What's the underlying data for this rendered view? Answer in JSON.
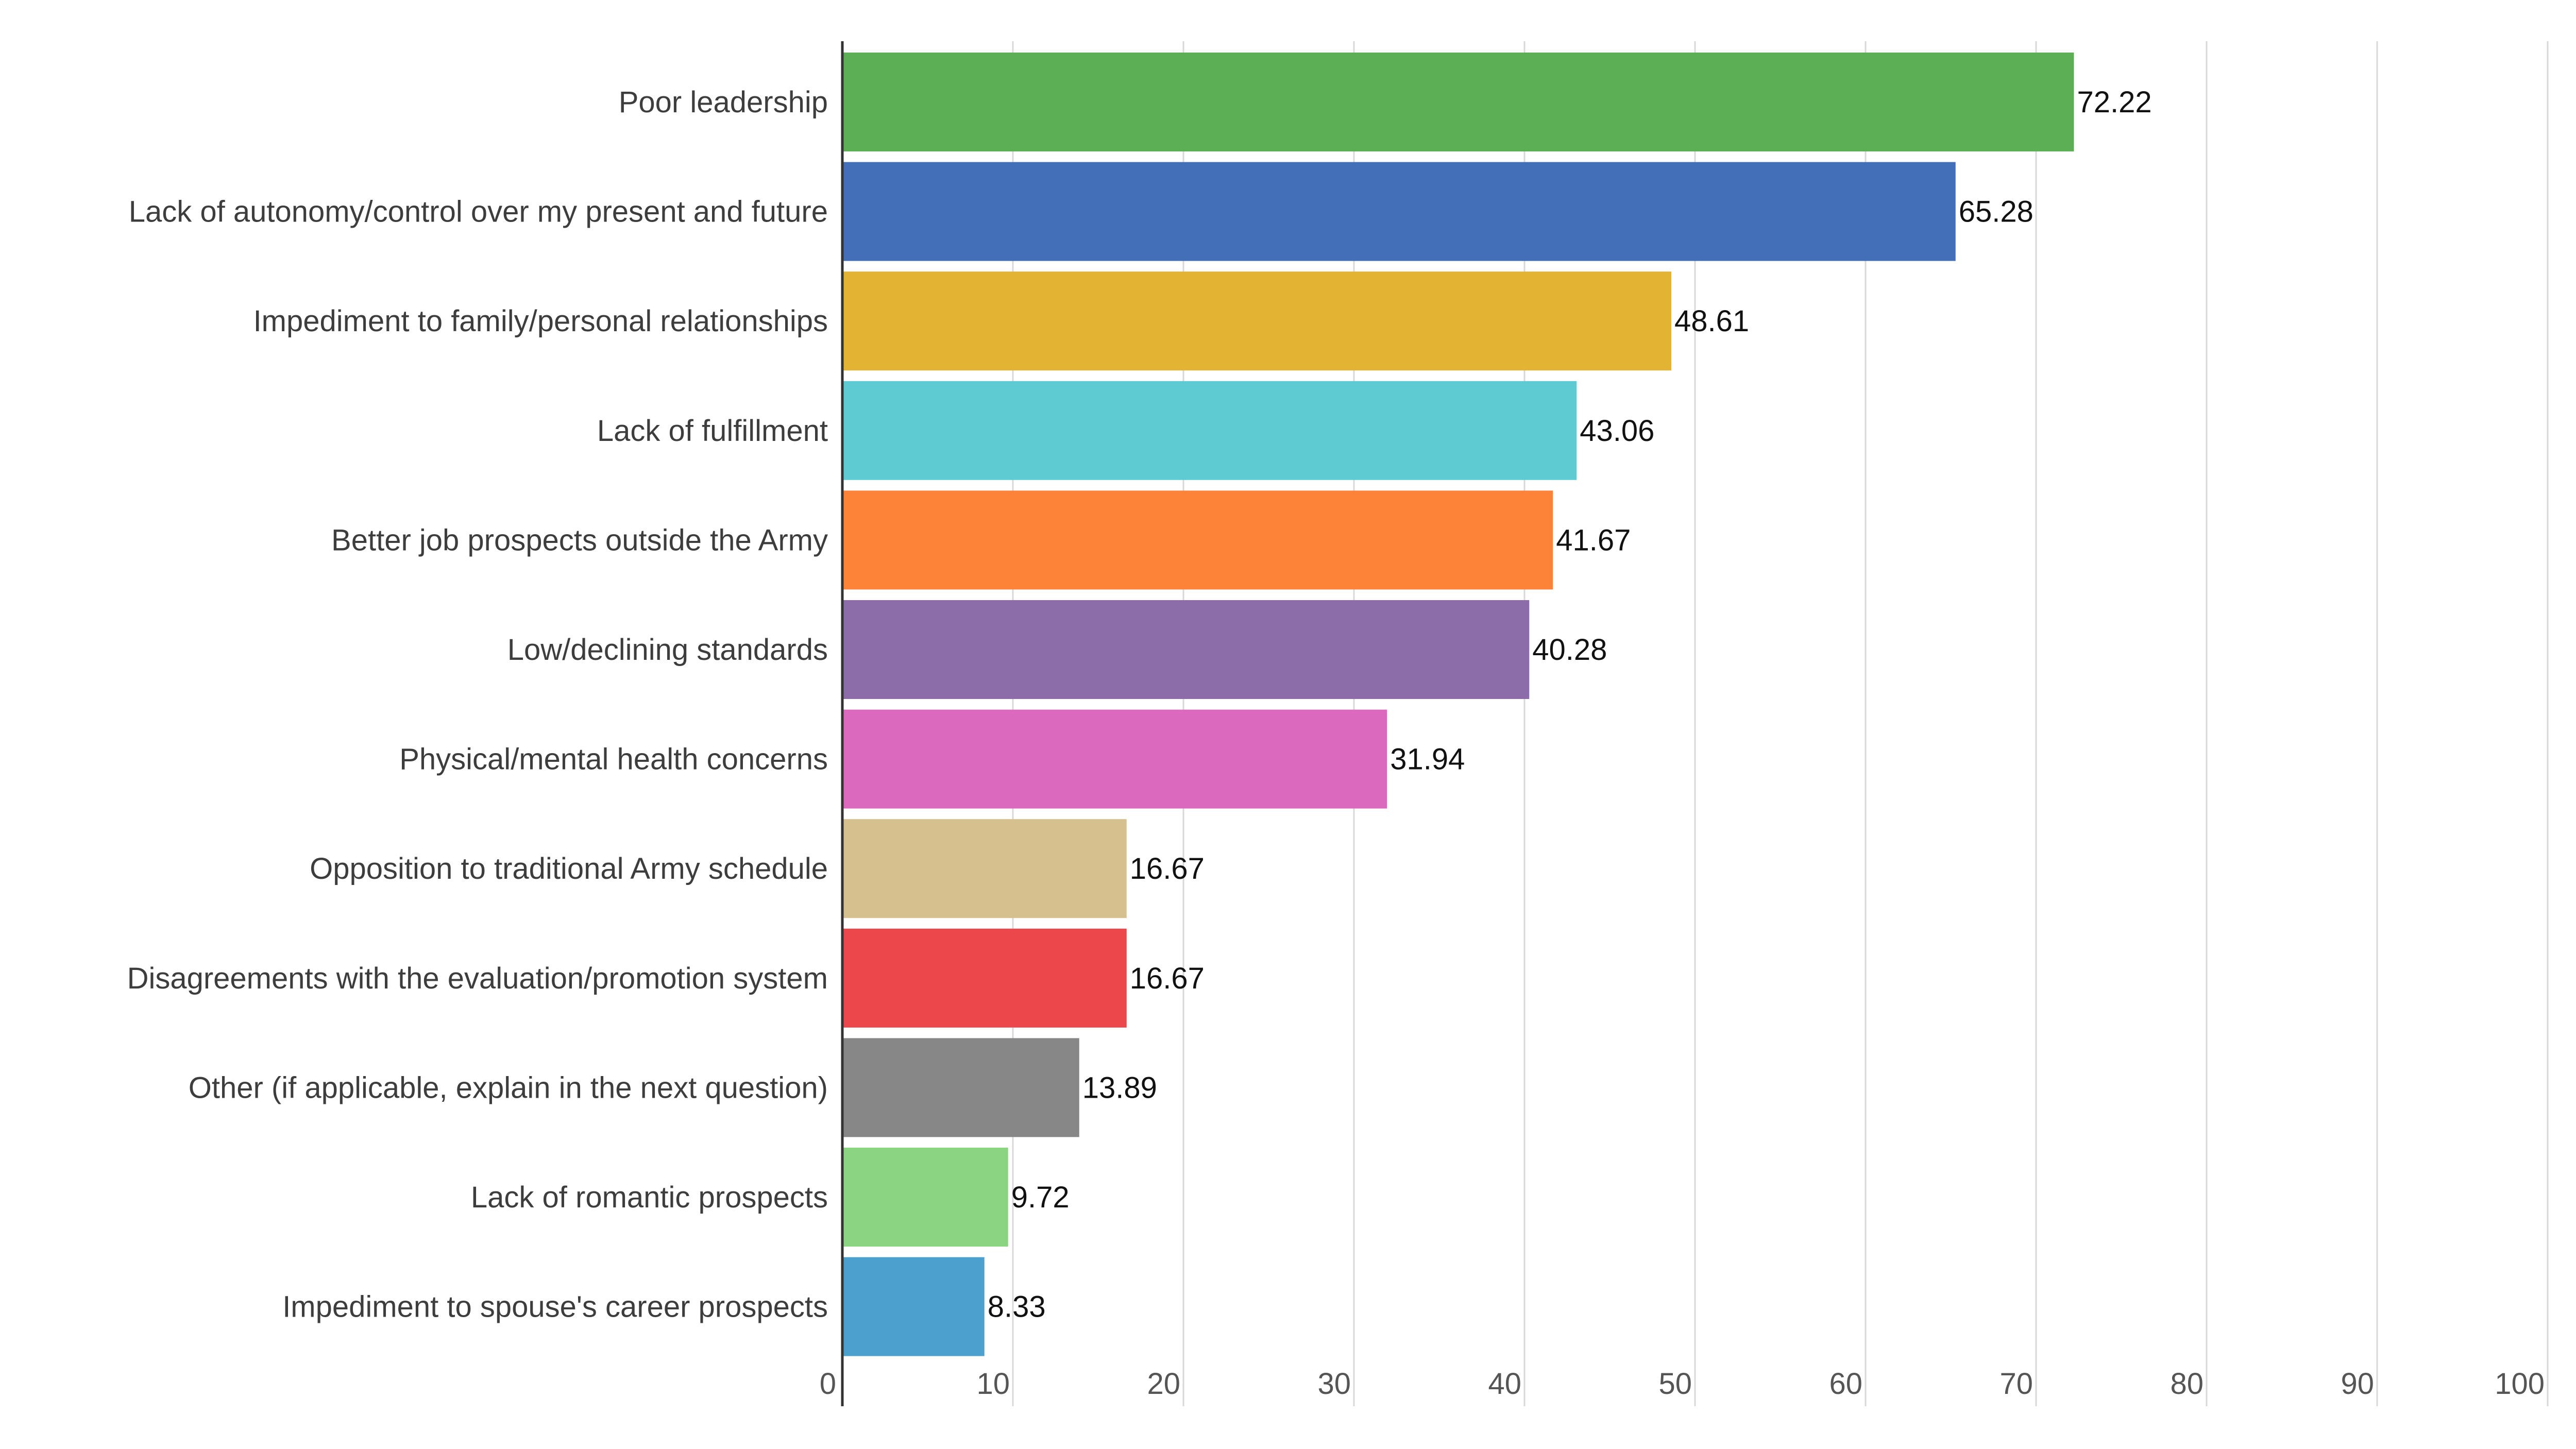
{
  "chart_data": {
    "type": "bar",
    "orientation": "horizontal",
    "categories": [
      "Poor leadership",
      "Lack of autonomy/control over my present and future",
      "Impediment to family/personal relationships",
      "Lack of fulfillment",
      "Better job prospects outside the Army",
      "Low/declining standards",
      "Physical/mental health concerns",
      "Opposition to traditional Army schedule",
      "Disagreements with the evaluation/promotion system",
      "Other (if applicable, explain in the next question)",
      "Lack of romantic prospects",
      "Impediment to spouse's career prospects"
    ],
    "values": [
      72.22,
      65.28,
      48.61,
      43.06,
      41.67,
      40.28,
      31.94,
      16.67,
      16.67,
      13.89,
      9.72,
      8.33
    ],
    "value_labels": [
      "72.22",
      "65.28",
      "48.61",
      "43.06",
      "41.67",
      "40.28",
      "31.94",
      "16.67",
      "16.67",
      "13.89",
      "9.72",
      "8.33"
    ],
    "colors": [
      "#5daf55",
      "#426fb8",
      "#e3b333",
      "#5ecbd3",
      "#fd8339",
      "#8c6daa",
      "#db6abf",
      "#d6c08e",
      "#ec474a",
      "#878787",
      "#8bd482",
      "#4ca0cd"
    ],
    "xlim": [
      0,
      100
    ],
    "xticks": [
      "0",
      "10",
      "20",
      "30",
      "40",
      "50",
      "60",
      "70",
      "80",
      "90",
      "100"
    ],
    "grid": true,
    "title": "",
    "xlabel": "",
    "ylabel": ""
  }
}
